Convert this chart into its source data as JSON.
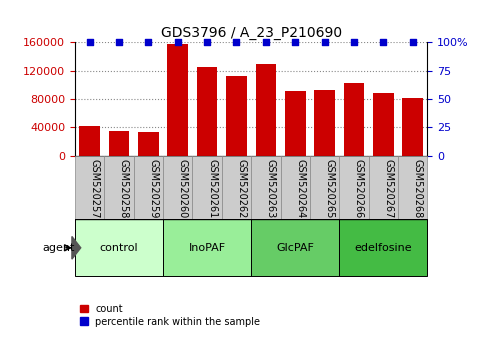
{
  "title": "GDS3796 / A_23_P210690",
  "samples": [
    "GSM520257",
    "GSM520258",
    "GSM520259",
    "GSM520260",
    "GSM520261",
    "GSM520262",
    "GSM520263",
    "GSM520264",
    "GSM520265",
    "GSM520266",
    "GSM520267",
    "GSM520268"
  ],
  "bar_values": [
    42000,
    35000,
    34000,
    158000,
    126000,
    113000,
    130000,
    91000,
    93000,
    103000,
    88000,
    82000
  ],
  "percentile_values": [
    100,
    100,
    100,
    100,
    100,
    100,
    100,
    100,
    100,
    100,
    100,
    100
  ],
  "bar_color": "#cc0000",
  "dot_color": "#0000cc",
  "ylim_left": [
    0,
    160000
  ],
  "ylim_right": [
    0,
    100
  ],
  "yticks_left": [
    0,
    40000,
    80000,
    120000,
    160000
  ],
  "ytick_labels_left": [
    "0",
    "40000",
    "80000",
    "120000",
    "160000"
  ],
  "yticks_right": [
    0,
    25,
    50,
    75,
    100
  ],
  "ytick_labels_right": [
    "0",
    "25",
    "50",
    "75",
    "100%"
  ],
  "groups": [
    {
      "label": "control",
      "start": 0,
      "end": 2,
      "color": "#ccffcc"
    },
    {
      "label": "InoPAF",
      "start": 3,
      "end": 5,
      "color": "#99ee99"
    },
    {
      "label": "GlcPAF",
      "start": 6,
      "end": 8,
      "color": "#66cc66"
    },
    {
      "label": "edelfosine",
      "start": 9,
      "end": 11,
      "color": "#44bb44"
    }
  ],
  "xtick_bg_color": "#cccccc",
  "xtick_border_color": "#888888",
  "grid_color": "#888888",
  "bg_color": "#ffffff",
  "legend_items": [
    {
      "label": "count",
      "color": "#cc0000"
    },
    {
      "label": "percentile rank within the sample",
      "color": "#0000cc"
    }
  ]
}
